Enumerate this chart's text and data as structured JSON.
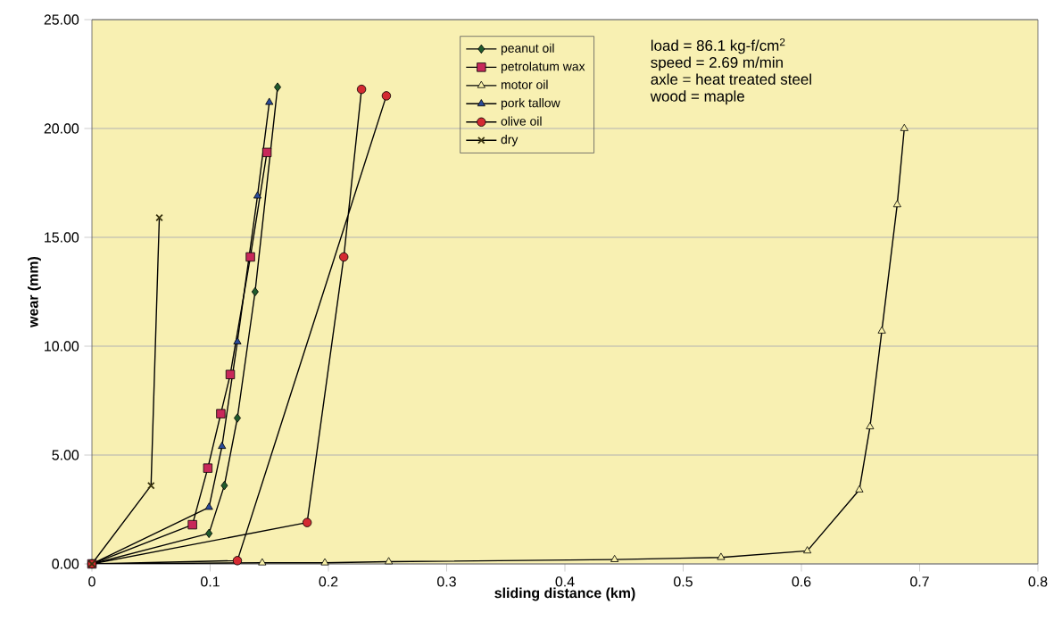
{
  "chart_data": {
    "type": "line",
    "xlabel": "sliding distance (km)",
    "ylabel": "wear (mm)",
    "xlim": [
      0,
      0.8
    ],
    "ylim": [
      0,
      25
    ],
    "xticks": [
      0,
      0.1,
      0.2,
      0.3,
      0.4,
      0.5,
      0.6,
      0.7,
      0.8
    ],
    "yticks": [
      {
        "value": 0,
        "label": "0.00"
      },
      {
        "value": 5,
        "label": "5.00"
      },
      {
        "value": 10,
        "label": "10.00"
      },
      {
        "value": 15,
        "label": "15.00"
      },
      {
        "value": 20,
        "label": "20.00"
      },
      {
        "value": 25,
        "label": "25.00"
      }
    ],
    "grid": "y",
    "legend": "top",
    "annotations": [
      "load = 86.1 kg-f/cm$^{2}$",
      "speed = 2.69 m/min",
      "axle = heat treated steel",
      "wood = maple"
    ],
    "series": [
      {
        "name": "peanut oil",
        "color": "#1f5a2c",
        "marker": "diamond",
        "x": [
          0,
          0.099,
          0.112,
          0.123,
          0.138,
          0.157
        ],
        "values": [
          0,
          1.4,
          3.6,
          6.7,
          12.5,
          21.9
        ]
      },
      {
        "name": "petrolatum wax",
        "color": "#c8285a",
        "marker": "square",
        "x": [
          0,
          0.085,
          0.098,
          0.109,
          0.117,
          0.134,
          0.148
        ],
        "values": [
          0,
          1.8,
          4.4,
          6.9,
          8.7,
          14.1,
          18.9
        ]
      },
      {
        "name": "motor oil",
        "color": "#f8f0a8",
        "marker": "triangle",
        "x": [
          0,
          0.144,
          0.197,
          0.251,
          0.442,
          0.532,
          0.605,
          0.649,
          0.658,
          0.668,
          0.681,
          0.687
        ],
        "values": [
          0,
          0.05,
          0.05,
          0.1,
          0.2,
          0.3,
          0.6,
          3.4,
          6.3,
          10.7,
          16.5,
          20.0
        ]
      },
      {
        "name": "pork tallow",
        "color": "#2a4a98",
        "marker": "triangle",
        "x": [
          0,
          0.099,
          0.11,
          0.123,
          0.14,
          0.15
        ],
        "values": [
          0,
          2.6,
          5.4,
          10.2,
          16.9,
          21.2
        ]
      },
      {
        "name": "olive oil",
        "color": "#d42a32",
        "marker": "circle",
        "x": [
          0.249,
          0.123,
          0,
          0.182,
          0.213,
          0.228
        ],
        "values": [
          21.5,
          0.15,
          0,
          1.9,
          14.1,
          21.8
        ]
      },
      {
        "name": "dry",
        "color": "#3a3410",
        "marker": "cross",
        "x": [
          0,
          0.05,
          0.057
        ],
        "values": [
          0,
          3.6,
          15.9
        ]
      }
    ]
  }
}
